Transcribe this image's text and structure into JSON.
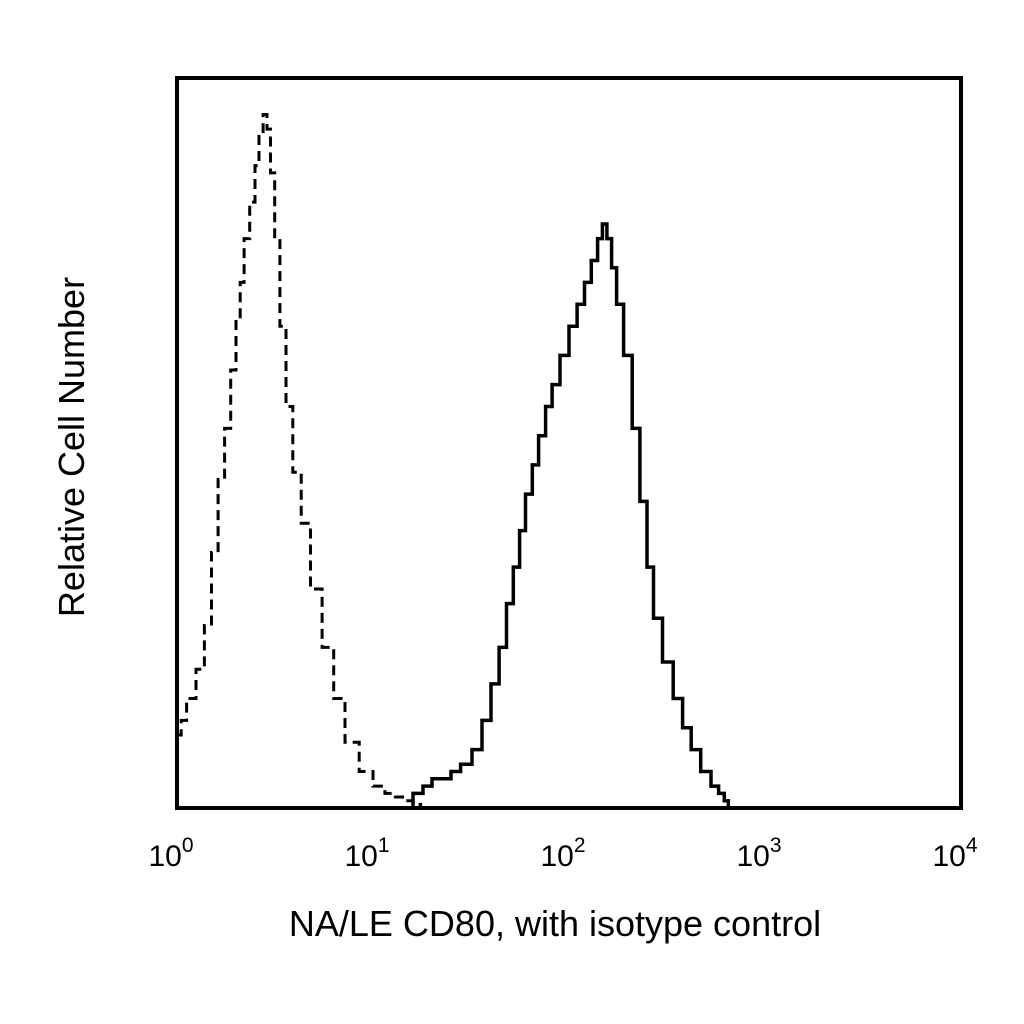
{
  "chart_data": {
    "type": "line",
    "title": "",
    "xlabel": "NA/LE CD80, with isotype control",
    "ylabel": "Relative Cell Number",
    "xscale": "log",
    "xlim": [
      1,
      10000
    ],
    "ylim": [
      0,
      100
    ],
    "grid": false,
    "x_ticks": [
      {
        "value": 1,
        "base": "10",
        "exp": "0"
      },
      {
        "value": 10,
        "base": "10",
        "exp": "1"
      },
      {
        "value": 100,
        "base": "10",
        "exp": "2"
      },
      {
        "value": 1000,
        "base": "10",
        "exp": "3"
      },
      {
        "value": 10000,
        "base": "10",
        "exp": "4"
      }
    ],
    "series": [
      {
        "style": "dashed",
        "color": "#000000",
        "points": [
          [
            1.0,
            10
          ],
          [
            1.05,
            12
          ],
          [
            1.12,
            15
          ],
          [
            1.25,
            19
          ],
          [
            1.38,
            25
          ],
          [
            1.5,
            35
          ],
          [
            1.62,
            45
          ],
          [
            1.75,
            52
          ],
          [
            1.88,
            60
          ],
          [
            2.0,
            67
          ],
          [
            2.1,
            72
          ],
          [
            2.2,
            78
          ],
          [
            2.35,
            83
          ],
          [
            2.5,
            88
          ],
          [
            2.62,
            92
          ],
          [
            2.75,
            95
          ],
          [
            2.88,
            93
          ],
          [
            3.0,
            87
          ],
          [
            3.15,
            78
          ],
          [
            3.35,
            66
          ],
          [
            3.6,
            55
          ],
          [
            3.9,
            46
          ],
          [
            4.3,
            39
          ],
          [
            4.8,
            30
          ],
          [
            5.5,
            22
          ],
          [
            6.3,
            15
          ],
          [
            7.2,
            9
          ],
          [
            8.5,
            5
          ],
          [
            10.0,
            3
          ],
          [
            11.5,
            2
          ],
          [
            13.0,
            1.5
          ],
          [
            14.5,
            1
          ],
          [
            16.0,
            0.5
          ],
          [
            17.5,
            0
          ]
        ]
      },
      {
        "style": "solid",
        "color": "#000000",
        "points": [
          [
            14,
            0
          ],
          [
            16,
            2
          ],
          [
            18,
            3
          ],
          [
            20,
            4
          ],
          [
            22,
            4
          ],
          [
            25,
            5
          ],
          [
            28,
            6
          ],
          [
            32,
            8
          ],
          [
            36,
            12
          ],
          [
            40,
            17
          ],
          [
            44,
            22
          ],
          [
            48,
            28
          ],
          [
            52,
            33
          ],
          [
            56,
            38
          ],
          [
            60,
            43
          ],
          [
            65,
            47
          ],
          [
            70,
            51
          ],
          [
            76,
            55
          ],
          [
            82,
            58
          ],
          [
            90,
            62
          ],
          [
            100,
            66
          ],
          [
            110,
            69
          ],
          [
            120,
            72
          ],
          [
            130,
            75
          ],
          [
            140,
            78
          ],
          [
            148,
            80
          ],
          [
            156,
            78
          ],
          [
            165,
            74
          ],
          [
            175,
            69
          ],
          [
            190,
            62
          ],
          [
            210,
            52
          ],
          [
            230,
            42
          ],
          [
            250,
            33
          ],
          [
            270,
            26
          ],
          [
            300,
            20
          ],
          [
            340,
            15
          ],
          [
            380,
            11
          ],
          [
            420,
            8
          ],
          [
            470,
            5
          ],
          [
            530,
            3
          ],
          [
            580,
            2
          ],
          [
            620,
            1
          ],
          [
            650,
            0
          ]
        ]
      }
    ]
  }
}
